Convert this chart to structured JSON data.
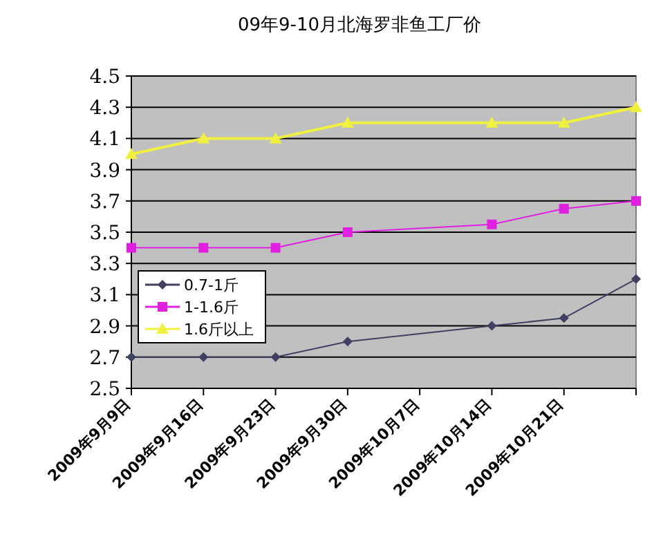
{
  "chart_data": {
    "type": "line",
    "title": "09年9-10月北海罗非鱼工厂价",
    "x": [
      "2009-09-09",
      "2009-09-16",
      "2009-09-23",
      "2009-09-30",
      "2009-10-14",
      "2009-10-21",
      "2009-10-28"
    ],
    "series": [
      {
        "name": "0.7-1斤",
        "color": "#404060",
        "marker": "diamond",
        "values": [
          2.7,
          2.7,
          2.7,
          2.8,
          2.9,
          2.95,
          3.2
        ]
      },
      {
        "name": "1-1.6斤",
        "color": "#e020e0",
        "marker": "square",
        "values": [
          3.4,
          3.4,
          3.4,
          3.5,
          3.55,
          3.65,
          3.7
        ]
      },
      {
        "name": "1.6斤以上",
        "color": "#f0f040",
        "marker": "triangle",
        "values": [
          4.0,
          4.1,
          4.1,
          4.2,
          4.2,
          4.2,
          4.3
        ]
      }
    ],
    "xlim": [
      "2009-09-09",
      "2009-10-28"
    ],
    "xticks": [
      {
        "value": "2009-09-09",
        "label": "2009年9月9日"
      },
      {
        "value": "2009-09-16",
        "label": "2009年9月16日"
      },
      {
        "value": "2009-09-23",
        "label": "2009年9月23日"
      },
      {
        "value": "2009-09-30",
        "label": "2009年9月30日"
      },
      {
        "value": "2009-10-07",
        "label": "2009年10月7日"
      },
      {
        "value": "2009-10-14",
        "label": "2009年10月14日"
      },
      {
        "value": "2009-10-21",
        "label": "2009年10月21日"
      },
      {
        "value": "2009-10-28",
        "label": null
      }
    ],
    "ylim": [
      2.5,
      4.5
    ],
    "yticks": [
      {
        "value": 2.5,
        "label": "2.5"
      },
      {
        "value": 2.7,
        "label": "2.7"
      },
      {
        "value": 2.9,
        "label": "2.9"
      },
      {
        "value": 3.1,
        "label": "3.1"
      },
      {
        "value": 3.3,
        "label": "3.3"
      },
      {
        "value": 3.5,
        "label": "3.5"
      },
      {
        "value": 3.7,
        "label": "3.7"
      },
      {
        "value": 3.9,
        "label": "3.9"
      },
      {
        "value": 4.1,
        "label": "4.1"
      },
      {
        "value": 4.3,
        "label": "4.3"
      },
      {
        "value": 4.5,
        "label": "4.5"
      }
    ],
    "grid": "y",
    "legend": "left"
  }
}
